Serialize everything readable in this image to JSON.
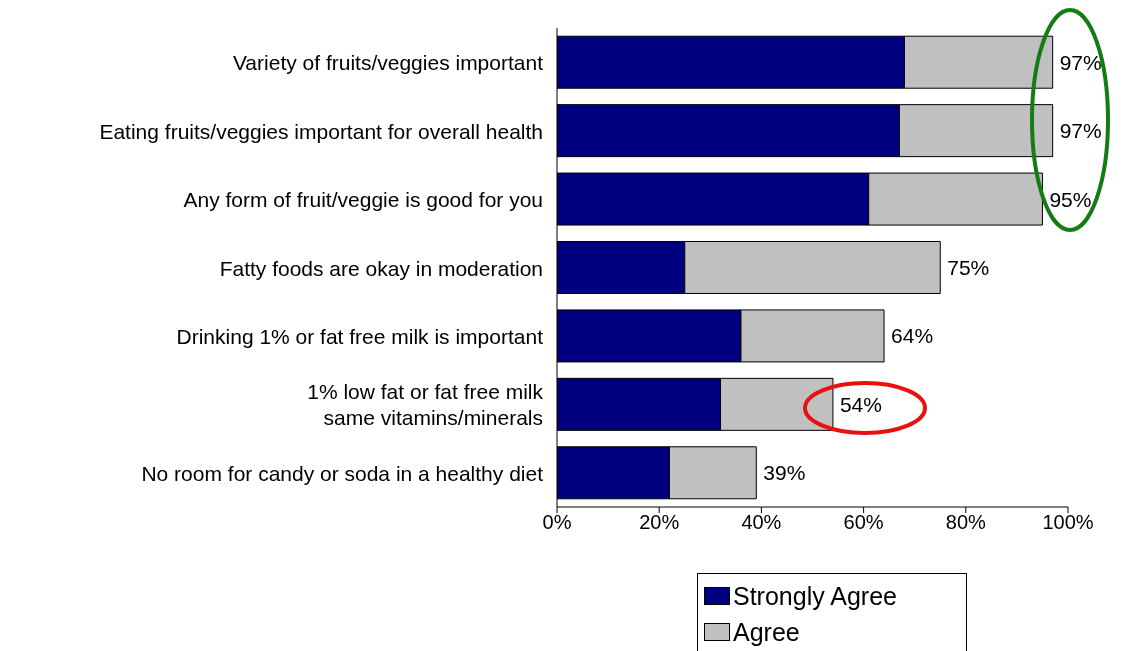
{
  "chart_data": {
    "type": "bar",
    "orientation": "horizontal",
    "stacked": true,
    "categories": [
      "Variety of fruits/veggies important",
      "Eating fruits/veggies important for overall health",
      "Any form of fruit/veggie is good for you",
      "Fatty foods are okay in moderation",
      "Drinking 1% or fat free milk is important",
      "1% low fat or fat free milk\nsame vitamins/minerals",
      "No room for candy or soda in a healthy diet"
    ],
    "series": [
      {
        "name": "Strongly Agree",
        "color": "#000080",
        "values": [
          68,
          67,
          61,
          25,
          36,
          32,
          22
        ]
      },
      {
        "name": "Agree",
        "color": "#c0c0c0",
        "values": [
          29,
          30,
          34,
          50,
          28,
          22,
          17
        ]
      }
    ],
    "totals": [
      "97%",
      "97%",
      "95%",
      "75%",
      "64%",
      "54%",
      "39%"
    ],
    "xlim": [
      0,
      100
    ],
    "xticks": [
      {
        "value": 0,
        "label": "0%"
      },
      {
        "value": 20,
        "label": "20%"
      },
      {
        "value": 40,
        "label": "40%"
      },
      {
        "value": 60,
        "label": "60%"
      },
      {
        "value": 80,
        "label": "80%"
      },
      {
        "value": 100,
        "label": "100%"
      }
    ],
    "grid": false,
    "legend": "bottom"
  }
}
